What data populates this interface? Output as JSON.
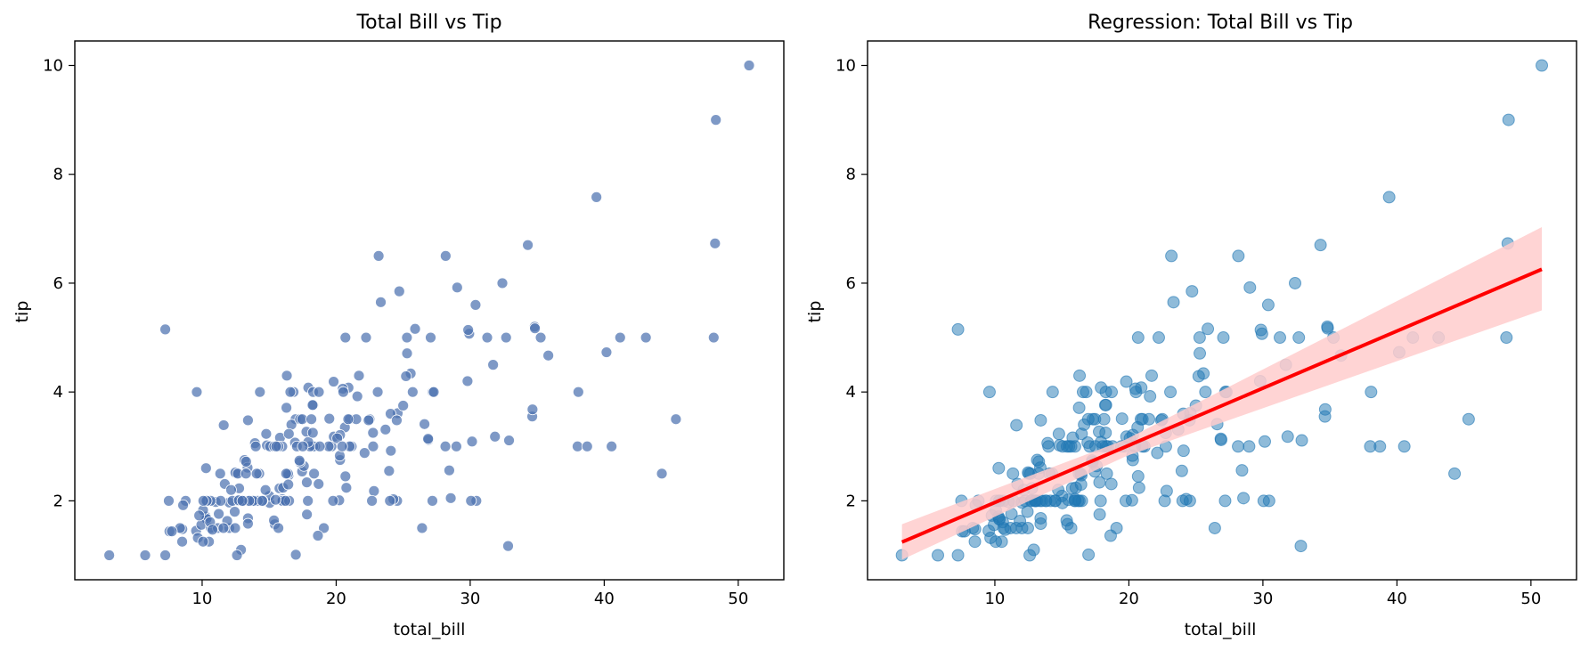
{
  "chart_data": [
    {
      "type": "scatter",
      "title": "Total Bill vs Tip",
      "xlabel": "total_bill",
      "ylabel": "tip",
      "xlim": [
        0.5,
        53.4
      ],
      "ylim": [
        0.55,
        10.45
      ],
      "xticks": [
        10,
        20,
        30,
        40,
        50
      ],
      "yticks": [
        2,
        4,
        6,
        8,
        10
      ],
      "grid": false,
      "marker_color": "#4c72b0",
      "points": [
        [
          16.99,
          1.01
        ],
        [
          10.34,
          1.66
        ],
        [
          21.01,
          3.5
        ],
        [
          23.68,
          3.31
        ],
        [
          24.59,
          3.61
        ],
        [
          25.29,
          4.71
        ],
        [
          8.77,
          2.0
        ],
        [
          26.88,
          3.12
        ],
        [
          15.04,
          1.96
        ],
        [
          14.78,
          3.23
        ],
        [
          10.27,
          1.71
        ],
        [
          35.26,
          5.0
        ],
        [
          15.42,
          1.57
        ],
        [
          18.43,
          3.0
        ],
        [
          14.83,
          3.02
        ],
        [
          21.58,
          3.92
        ],
        [
          10.33,
          1.67
        ],
        [
          16.29,
          3.71
        ],
        [
          16.97,
          3.5
        ],
        [
          20.65,
          3.35
        ],
        [
          17.92,
          4.08
        ],
        [
          20.29,
          2.75
        ],
        [
          15.77,
          2.23
        ],
        [
          39.42,
          7.58
        ],
        [
          19.82,
          3.18
        ],
        [
          17.81,
          2.34
        ],
        [
          13.37,
          2.0
        ],
        [
          12.69,
          2.0
        ],
        [
          21.7,
          4.3
        ],
        [
          19.65,
          3.0
        ],
        [
          9.55,
          1.45
        ],
        [
          18.35,
          2.5
        ],
        [
          15.06,
          3.0
        ],
        [
          20.69,
          2.45
        ],
        [
          17.78,
          3.27
        ],
        [
          24.06,
          3.6
        ],
        [
          16.31,
          2.0
        ],
        [
          16.93,
          3.07
        ],
        [
          18.69,
          2.31
        ],
        [
          31.27,
          5.0
        ],
        [
          16.04,
          2.24
        ],
        [
          17.46,
          2.54
        ],
        [
          13.94,
          3.06
        ],
        [
          9.68,
          1.32
        ],
        [
          30.4,
          5.6
        ],
        [
          18.29,
          3.0
        ],
        [
          22.23,
          5.0
        ],
        [
          32.4,
          6.0
        ],
        [
          28.55,
          2.05
        ],
        [
          18.04,
          3.0
        ],
        [
          12.54,
          2.5
        ],
        [
          10.29,
          2.6
        ],
        [
          34.81,
          5.2
        ],
        [
          9.94,
          1.56
        ],
        [
          25.56,
          4.34
        ],
        [
          19.49,
          3.51
        ],
        [
          38.01,
          3.0
        ],
        [
          26.41,
          1.5
        ],
        [
          11.24,
          1.76
        ],
        [
          48.27,
          6.73
        ],
        [
          20.29,
          3.21
        ],
        [
          13.81,
          2.0
        ],
        [
          11.02,
          1.98
        ],
        [
          18.29,
          3.76
        ],
        [
          17.59,
          2.64
        ],
        [
          20.08,
          3.15
        ],
        [
          16.45,
          2.47
        ],
        [
          3.07,
          1.0
        ],
        [
          20.23,
          2.01
        ],
        [
          15.01,
          2.09
        ],
        [
          12.02,
          1.97
        ],
        [
          17.07,
          3.0
        ],
        [
          26.86,
          3.14
        ],
        [
          25.28,
          5.0
        ],
        [
          14.73,
          2.2
        ],
        [
          10.51,
          1.25
        ],
        [
          17.92,
          3.08
        ],
        [
          27.2,
          4.0
        ],
        [
          22.76,
          3.0
        ],
        [
          17.29,
          2.71
        ],
        [
          19.44,
          3.0
        ],
        [
          16.66,
          3.4
        ],
        [
          10.07,
          1.83
        ],
        [
          32.68,
          5.0
        ],
        [
          15.98,
          2.03
        ],
        [
          34.83,
          5.17
        ],
        [
          13.03,
          2.0
        ],
        [
          18.28,
          4.0
        ],
        [
          24.71,
          5.85
        ],
        [
          21.16,
          3.0
        ],
        [
          28.97,
          3.0
        ],
        [
          22.49,
          3.5
        ],
        [
          5.75,
          1.0
        ],
        [
          16.32,
          4.3
        ],
        [
          22.75,
          3.25
        ],
        [
          40.17,
          4.73
        ],
        [
          27.28,
          4.0
        ],
        [
          12.03,
          1.5
        ],
        [
          21.01,
          3.0
        ],
        [
          12.46,
          1.5
        ],
        [
          11.35,
          2.5
        ],
        [
          15.38,
          3.0
        ],
        [
          44.3,
          2.5
        ],
        [
          22.42,
          3.48
        ],
        [
          20.92,
          4.08
        ],
        [
          15.36,
          1.64
        ],
        [
          20.49,
          4.06
        ],
        [
          25.21,
          4.29
        ],
        [
          18.24,
          3.76
        ],
        [
          14.31,
          4.0
        ],
        [
          14.0,
          3.0
        ],
        [
          7.25,
          1.0
        ],
        [
          38.07,
          4.0
        ],
        [
          23.95,
          2.55
        ],
        [
          25.71,
          4.0
        ],
        [
          17.31,
          3.5
        ],
        [
          29.93,
          5.07
        ],
        [
          10.65,
          1.5
        ],
        [
          12.43,
          1.8
        ],
        [
          24.08,
          2.92
        ],
        [
          11.69,
          2.31
        ],
        [
          13.42,
          1.68
        ],
        [
          14.26,
          2.5
        ],
        [
          15.95,
          2.0
        ],
        [
          12.48,
          2.52
        ],
        [
          29.8,
          4.2
        ],
        [
          8.52,
          1.48
        ],
        [
          14.52,
          2.0
        ],
        [
          11.38,
          2.0
        ],
        [
          22.82,
          2.18
        ],
        [
          19.08,
          1.5
        ],
        [
          20.27,
          2.83
        ],
        [
          11.17,
          1.5
        ],
        [
          12.26,
          2.0
        ],
        [
          18.26,
          3.25
        ],
        [
          8.51,
          1.25
        ],
        [
          10.33,
          2.0
        ],
        [
          14.15,
          2.0
        ],
        [
          16.0,
          2.0
        ],
        [
          13.16,
          2.75
        ],
        [
          17.47,
          3.5
        ],
        [
          34.3,
          6.7
        ],
        [
          41.19,
          5.0
        ],
        [
          27.05,
          5.0
        ],
        [
          16.43,
          2.3
        ],
        [
          8.35,
          1.5
        ],
        [
          18.64,
          1.36
        ],
        [
          11.87,
          1.63
        ],
        [
          9.78,
          1.73
        ],
        [
          7.51,
          2.0
        ],
        [
          14.07,
          2.5
        ],
        [
          13.13,
          2.0
        ],
        [
          17.26,
          2.74
        ],
        [
          24.55,
          2.0
        ],
        [
          19.77,
          2.0
        ],
        [
          29.85,
          5.14
        ],
        [
          48.17,
          5.0
        ],
        [
          25.0,
          3.75
        ],
        [
          13.39,
          2.61
        ],
        [
          16.49,
          2.0
        ],
        [
          21.5,
          3.5
        ],
        [
          12.66,
          2.5
        ],
        [
          16.21,
          2.0
        ],
        [
          13.81,
          2.0
        ],
        [
          17.51,
          3.0
        ],
        [
          24.52,
          3.48
        ],
        [
          20.76,
          2.24
        ],
        [
          31.71,
          4.5
        ],
        [
          10.59,
          1.61
        ],
        [
          10.63,
          2.0
        ],
        [
          50.81,
          10.0
        ],
        [
          15.81,
          3.16
        ],
        [
          7.25,
          5.15
        ],
        [
          31.85,
          3.18
        ],
        [
          16.82,
          4.0
        ],
        [
          32.9,
          3.11
        ],
        [
          17.89,
          2.0
        ],
        [
          14.48,
          2.0
        ],
        [
          9.6,
          4.0
        ],
        [
          34.63,
          3.55
        ],
        [
          34.65,
          3.68
        ],
        [
          23.33,
          5.65
        ],
        [
          45.35,
          3.5
        ],
        [
          23.17,
          6.5
        ],
        [
          40.55,
          3.0
        ],
        [
          20.69,
          5.0
        ],
        [
          20.9,
          3.5
        ],
        [
          30.46,
          2.0
        ],
        [
          18.15,
          3.5
        ],
        [
          23.1,
          4.0
        ],
        [
          15.69,
          1.5
        ],
        [
          19.81,
          4.19
        ],
        [
          28.44,
          2.56
        ],
        [
          15.48,
          2.02
        ],
        [
          16.58,
          4.0
        ],
        [
          7.56,
          1.44
        ],
        [
          10.34,
          2.0
        ],
        [
          43.11,
          5.0
        ],
        [
          13.0,
          2.0
        ],
        [
          13.51,
          2.0
        ],
        [
          18.71,
          4.0
        ],
        [
          12.74,
          2.01
        ],
        [
          13.0,
          2.0
        ],
        [
          16.4,
          2.5
        ],
        [
          20.53,
          4.0
        ],
        [
          16.47,
          3.23
        ],
        [
          26.59,
          3.41
        ],
        [
          38.73,
          3.0
        ],
        [
          24.27,
          2.03
        ],
        [
          12.76,
          2.23
        ],
        [
          30.06,
          2.0
        ],
        [
          25.89,
          5.16
        ],
        [
          48.33,
          9.0
        ],
        [
          13.27,
          2.5
        ],
        [
          28.17,
          6.5
        ],
        [
          12.9,
          1.1
        ],
        [
          28.15,
          3.0
        ],
        [
          11.59,
          1.5
        ],
        [
          7.74,
          1.44
        ],
        [
          30.14,
          3.09
        ],
        [
          12.16,
          2.2
        ],
        [
          13.42,
          3.48
        ],
        [
          8.58,
          1.92
        ],
        [
          15.98,
          3.0
        ],
        [
          13.42,
          1.58
        ],
        [
          16.27,
          2.5
        ],
        [
          10.09,
          2.0
        ],
        [
          20.45,
          3.0
        ],
        [
          13.28,
          2.72
        ],
        [
          22.12,
          2.88
        ],
        [
          24.01,
          2.0
        ],
        [
          15.69,
          3.0
        ],
        [
          11.61,
          3.39
        ],
        [
          10.77,
          1.47
        ],
        [
          15.53,
          3.0
        ],
        [
          10.07,
          1.25
        ],
        [
          12.6,
          1.0
        ],
        [
          32.83,
          1.17
        ],
        [
          35.83,
          4.67
        ],
        [
          29.03,
          5.92
        ],
        [
          27.18,
          2.0
        ],
        [
          22.67,
          2.0
        ],
        [
          17.82,
          1.75
        ],
        [
          18.78,
          3.0
        ]
      ]
    },
    {
      "type": "scatter",
      "title": "Regression: Total Bill vs Tip",
      "xlabel": "total_bill",
      "ylabel": "tip",
      "xlim": [
        0.5,
        53.4
      ],
      "ylim": [
        0.55,
        10.45
      ],
      "xticks": [
        10,
        20,
        30,
        40,
        50
      ],
      "yticks": [
        2,
        4,
        6,
        8,
        10
      ],
      "grid": false,
      "points_source": "same as chart 1",
      "marker_color": "#1f77b4",
      "regression": {
        "color": "#ff0000",
        "ci_color": "#ffcccc",
        "x_range": [
          3.07,
          50.81
        ],
        "intercept": 0.92,
        "slope": 0.105,
        "ci": [
          {
            "x": 3.07,
            "lower": 0.92,
            "upper": 1.57
          },
          {
            "x": 19.79,
            "lower": 2.82,
            "upper": 3.13
          },
          {
            "x": 50.81,
            "lower": 5.5,
            "upper": 7.03
          }
        ]
      }
    }
  ]
}
